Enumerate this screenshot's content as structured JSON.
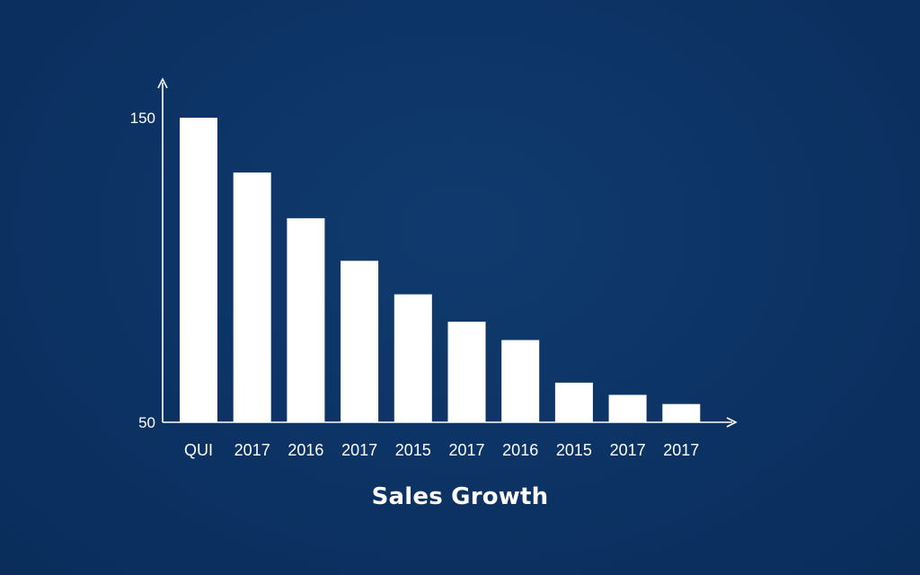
{
  "chart_data": {
    "type": "bar",
    "title": "Sales Growth",
    "xlabel": "",
    "ylabel": "",
    "categories": [
      "QUI",
      "2017",
      "2016",
      "2017",
      "2015",
      "2017",
      "2016",
      "2015",
      "2017",
      "2017"
    ],
    "values": [
      150,
      132,
      117,
      103,
      92,
      83,
      77,
      63,
      59,
      56
    ],
    "ylim": [
      50,
      150
    ],
    "yticks": [
      "150",
      "50"
    ],
    "grid": false,
    "bar_color": "#ffffff",
    "background_color": "#0d3566"
  }
}
